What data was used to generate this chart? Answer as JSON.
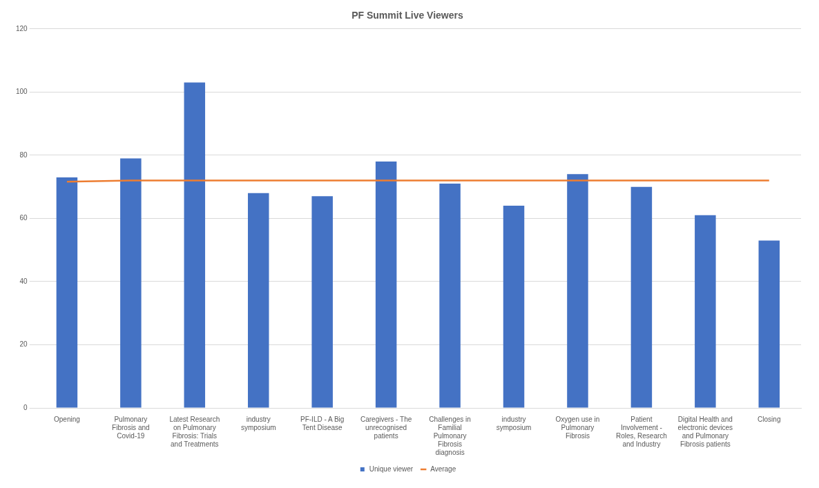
{
  "chart_data": {
    "type": "bar",
    "title": "PF Summit Live Viewers",
    "categories": [
      "Opening",
      "Pulmonary Fibrosis and Covid-19",
      "Latest Research on Pulmonary Fibrosis: Trials and Treatments",
      "industry symposium",
      "PF-ILD - A Big Tent Disease",
      "Caregivers - The unrecognised patients",
      "Challenges in Familial Pulmonary Fibrosis diagnosis",
      "industry symposium",
      "Oxygen use in Pulmonary Fibrosis",
      "Patient Involvement - Roles, Research and Industry",
      "Digital Health and electronic devices and Pulmonary Fibrosis patients",
      "Closing"
    ],
    "series": [
      {
        "name": "Unique viewer",
        "color": "#4472c4",
        "values": [
          73,
          79,
          103,
          68,
          67,
          78,
          71,
          64,
          74,
          70,
          61,
          53
        ]
      },
      {
        "name": "Average",
        "type": "line",
        "color": "#ed7d31",
        "values": [
          71.6,
          72,
          72,
          72,
          72,
          72,
          72,
          72,
          72,
          72,
          72,
          72
        ]
      }
    ],
    "ylim": [
      0,
      120
    ],
    "yticks": [
      0,
      20,
      40,
      60,
      80,
      100,
      120
    ],
    "grid": "y",
    "legend": "bottom",
    "marker": "none",
    "line_style": "solid"
  }
}
